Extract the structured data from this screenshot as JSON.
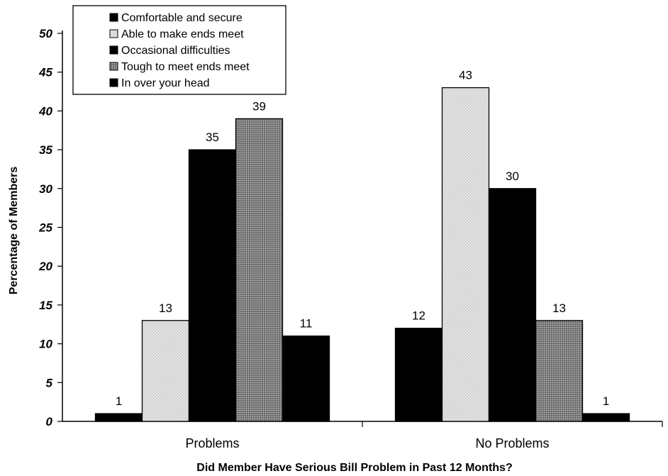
{
  "chart_data": {
    "type": "bar",
    "title": "",
    "xlabel": "Did Member Have Serious Bill Problem in Past 12 Months?",
    "ylabel": "Percentage of Members",
    "ylim": [
      0,
      50
    ],
    "yticks": [
      "0",
      "5",
      "10",
      "15",
      "20",
      "25",
      "30",
      "35",
      "40",
      "45",
      "50"
    ],
    "categories": [
      "Problems",
      "No Problems"
    ],
    "series": [
      {
        "name": "Comfortable and secure",
        "values": [
          1,
          12
        ],
        "pattern": "solid-black"
      },
      {
        "name": "Able to make ends meet",
        "values": [
          13,
          43
        ],
        "pattern": "light-dots"
      },
      {
        "name": "Occasional difficulties",
        "values": [
          35,
          30
        ],
        "pattern": "solid-black"
      },
      {
        "name": "Tough to meet ends meet",
        "values": [
          39,
          13
        ],
        "pattern": "dark-dots"
      },
      {
        "name": "In over your head",
        "values": [
          11,
          1
        ],
        "pattern": "solid-black"
      }
    ],
    "data_labels": true,
    "legend_position": "top-left",
    "grid": false
  }
}
